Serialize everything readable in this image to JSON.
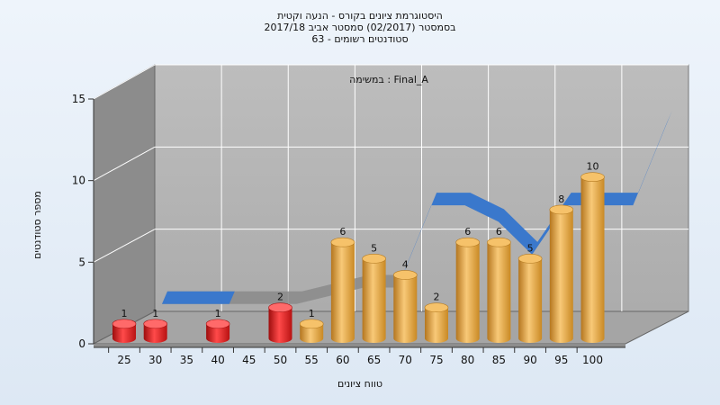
{
  "chart_data": {
    "type": "bar",
    "title_lines": [
      "היסטוגרמת ציונים בקורס - הנעה וקטית",
      "בסמסטר  (02/2017)  סמסטר אביב 2017/18",
      "סטודנטים רשומים - 63"
    ],
    "annotation": "במשימה : Final_A",
    "xlabel": "טווח ציונים",
    "ylabel": "מספר סטודנטים",
    "x_ticks": [
      "25",
      "30",
      "35",
      "40",
      "45",
      "50",
      "55",
      "60",
      "65",
      "70",
      "75",
      "80",
      "85",
      "90",
      "95",
      "100"
    ],
    "y_ticks": [
      "0",
      "5",
      "10",
      "15"
    ],
    "ylim": [
      0,
      15
    ],
    "categories": [
      "25",
      "30",
      "35",
      "40",
      "45",
      "50",
      "55",
      "60",
      "65",
      "70",
      "75",
      "80",
      "85",
      "90",
      "95",
      "100"
    ],
    "values": [
      1,
      1,
      0,
      1,
      0,
      2,
      1,
      6,
      5,
      4,
      2,
      6,
      6,
      5,
      8,
      10
    ],
    "bar_labels": [
      "1",
      "1",
      "",
      "1",
      "",
      "2",
      "1",
      "6",
      "5",
      "4",
      "2",
      "6",
      "6",
      "5",
      "8",
      "10"
    ],
    "failing_threshold": 55,
    "trend_line_values": [
      1,
      1,
      1,
      1,
      1,
      1.5,
      2,
      2,
      7,
      7,
      6,
      4,
      7,
      7,
      7,
      12
    ],
    "colors": {
      "failing": "#e21d1d",
      "passing": "#e9a23b",
      "trend": "#3a78cc",
      "trend_low": "#8a8a8a",
      "wall": "#b3b3b3",
      "side_wall": "#8c8c8c",
      "floor": "#a5a5a5"
    },
    "grid": true
  }
}
